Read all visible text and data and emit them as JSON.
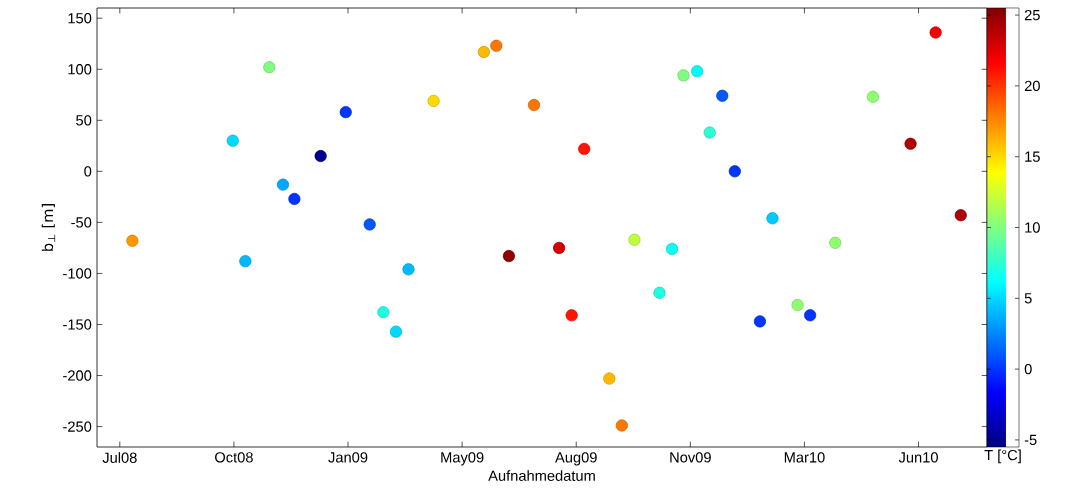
{
  "chart_data": {
    "type": "scatter",
    "x": [
      "2008-07-26",
      "2008-10-22",
      "2008-11-02",
      "2008-11-23",
      "2008-12-05",
      "2008-12-15",
      "2009-01-07",
      "2009-01-29",
      "2009-02-19",
      "2009-03-03",
      "2009-03-14",
      "2009-03-25",
      "2009-04-16",
      "2009-05-30",
      "2009-06-10",
      "2009-06-21",
      "2009-07-13",
      "2009-08-04",
      "2009-08-15",
      "2009-08-26",
      "2009-09-17",
      "2009-09-28",
      "2009-10-09",
      "2009-10-31",
      "2009-11-11",
      "2009-11-21",
      "2009-12-03",
      "2009-12-14",
      "2009-12-25",
      "2010-01-05",
      "2010-01-27",
      "2010-02-07",
      "2010-03-01",
      "2010-03-12",
      "2010-04-03",
      "2010-05-06",
      "2010-06-08",
      "2010-06-30",
      "2010-07-22"
    ],
    "values": [
      -68,
      30,
      -88,
      102,
      -13,
      -27,
      15,
      58,
      -52,
      -138,
      -157,
      -96,
      69,
      117,
      123,
      -83,
      65,
      -75,
      -141,
      22,
      -203,
      -249,
      -67,
      -119,
      -76,
      94,
      98,
      38,
      74,
      0,
      -147,
      -46,
      -131,
      -141,
      -70,
      73,
      27,
      136,
      -43
    ],
    "cvalues": [
      17,
      5,
      4,
      10,
      3.5,
      0,
      -5,
      0,
      1,
      7,
      5,
      4,
      15,
      16,
      18,
      25,
      18,
      23,
      21,
      21,
      16,
      18,
      12,
      7,
      6.5,
      10,
      6,
      7.5,
      1,
      0,
      0,
      4.5,
      10.5,
      0,
      10.5,
      10.5,
      24,
      22,
      24
    ],
    "xlabel": "Aufnahmedatum",
    "ylabel": "b$_{⊥}$ [m]",
    "clabel": "T [°C]",
    "xlim": [
      "2008-06-25",
      "2010-08-14"
    ],
    "ylim": [
      -270,
      160
    ],
    "xticks": [
      {
        "value": "2008-07-15",
        "label": "Jul08"
      },
      {
        "value": "2008-10-23",
        "label": "Oct08"
      },
      {
        "value": "2009-01-31",
        "label": "Jan09"
      },
      {
        "value": "2009-05-11",
        "label": "May09"
      },
      {
        "value": "2009-08-19",
        "label": "Aug09"
      },
      {
        "value": "2009-11-27",
        "label": "Nov09"
      },
      {
        "value": "2010-03-07",
        "label": "Mar10"
      },
      {
        "value": "2010-06-15",
        "label": "Jun10"
      }
    ],
    "yticks": [
      -250,
      -200,
      -150,
      -100,
      -50,
      0,
      50,
      100,
      150
    ],
    "clim": [
      -5.5,
      25.5
    ],
    "cticks": [
      -5,
      0,
      5,
      10,
      15,
      20,
      25
    ],
    "marker": "circle"
  }
}
